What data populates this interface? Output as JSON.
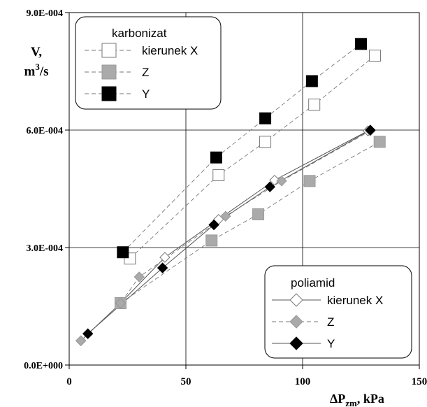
{
  "chart_data": {
    "type": "scatter",
    "xlabel_main": "ΔP",
    "xlabel_sub": "zm",
    "xlabel_unit": ", kPa",
    "ylabel_line1": "V,",
    "ylabel_line2_main": "m",
    "ylabel_line2_sup": "3",
    "ylabel_line2_end": "/s",
    "xlim": [
      0,
      150
    ],
    "ylim": [
      0,
      0.0009
    ],
    "x_ticks": [
      {
        "value": 0,
        "label": "0"
      },
      {
        "value": 50,
        "label": "50"
      },
      {
        "value": 100,
        "label": "100"
      },
      {
        "value": 150,
        "label": "150"
      }
    ],
    "y_ticks": [
      {
        "value": 0,
        "label": "0.0E+000"
      },
      {
        "value": 0.0003,
        "label": "3.0E-004"
      },
      {
        "value": 0.0006,
        "label": "6.0E-004"
      },
      {
        "value": 0.0009,
        "label": "9.0E-004"
      }
    ],
    "grid": true,
    "legends": [
      {
        "title": "karbonizat",
        "placement": "top-left",
        "entries": [
          "kierunek X",
          "Z",
          "Y"
        ]
      },
      {
        "title": "poliamid",
        "placement": "bottom-right",
        "entries": [
          "kierunek X",
          "Z",
          "Y"
        ]
      }
    ],
    "series": [
      {
        "group": "karbonizat",
        "name": "kierunek X",
        "marker": "square",
        "fill": "#ffffff",
        "stroke": "#777777",
        "line": "dashed",
        "x": [
          26,
          64,
          84,
          105,
          131
        ],
        "y": [
          0.000272,
          0.000485,
          0.00057,
          0.000665,
          0.00079
        ]
      },
      {
        "group": "karbonizat",
        "name": "Z",
        "marker": "square",
        "fill": "#aaaaaa",
        "stroke": "#999999",
        "line": "dashed",
        "x": [
          22,
          61,
          81,
          103,
          133
        ],
        "y": [
          0.000158,
          0.000318,
          0.000385,
          0.00047,
          0.00057
        ]
      },
      {
        "group": "karbonizat",
        "name": "Y",
        "marker": "square",
        "fill": "#000000",
        "stroke": "#000000",
        "line": "dashed",
        "x": [
          23,
          63,
          84,
          104,
          125
        ],
        "y": [
          0.000288,
          0.00053,
          0.00063,
          0.000725,
          0.00082
        ]
      },
      {
        "group": "poliamid",
        "name": "kierunek X",
        "marker": "diamond",
        "fill": "#ffffff",
        "stroke": "#777777",
        "line": "solid",
        "x": [
          5,
          22,
          41,
          64,
          88,
          128
        ],
        "y": [
          6.2e-05,
          0.000158,
          0.000275,
          0.000372,
          0.000472,
          0.000598
        ]
      },
      {
        "group": "poliamid",
        "name": "Z",
        "marker": "diamond",
        "fill": "#aaaaaa",
        "stroke": "#999999",
        "line": "dashed",
        "x": [
          5,
          22,
          30,
          67,
          91,
          129
        ],
        "y": [
          6.2e-05,
          0.000158,
          0.000225,
          0.00038,
          0.00047,
          0.000598
        ]
      },
      {
        "group": "poliamid",
        "name": "Y",
        "marker": "diamond",
        "fill": "#000000",
        "stroke": "#000000",
        "line": "solid",
        "x": [
          8,
          40,
          62,
          86,
          129
        ],
        "y": [
          8e-05,
          0.000248,
          0.000358,
          0.000455,
          0.0006
        ]
      }
    ]
  }
}
